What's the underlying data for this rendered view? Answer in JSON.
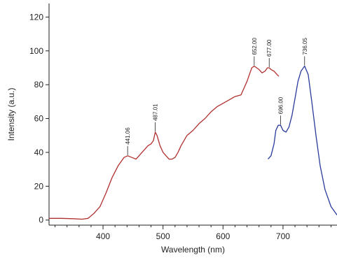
{
  "chart_data": {
    "type": "line",
    "title": "",
    "xlabel": "Wavelength (nm)",
    "ylabel": "Intensity (a.u.)",
    "xlim": [
      310,
      790
    ],
    "ylim": [
      -3,
      128
    ],
    "xticks": [
      400,
      500,
      600,
      700
    ],
    "yticks": [
      0,
      20,
      40,
      60,
      80,
      100,
      120
    ],
    "grid": false,
    "series": [
      {
        "color": "#b03030",
        "x": [
          310,
          330,
          350,
          365,
          375,
          385,
          395,
          405,
          415,
          425,
          435,
          441,
          448,
          455,
          465,
          475,
          480,
          484,
          487,
          490,
          495,
          500,
          505,
          510,
          515,
          520,
          525,
          530,
          540,
          550,
          560,
          570,
          580,
          590,
          600,
          610,
          620,
          630,
          635,
          640,
          645,
          648,
          652,
          656,
          660,
          665,
          670,
          674,
          677,
          680,
          685,
          690,
          693
        ],
        "y": [
          1,
          1,
          0.8,
          0.5,
          1,
          4,
          8,
          16,
          25,
          32,
          37,
          38,
          37,
          36,
          40,
          44,
          45,
          47,
          52,
          50,
          44,
          40,
          38,
          36,
          36,
          37,
          40,
          44,
          50,
          53,
          57,
          60,
          64,
          67,
          69,
          71,
          73,
          74,
          78,
          82,
          87,
          90,
          91,
          90,
          89,
          87,
          88,
          90,
          90,
          89,
          88,
          86,
          85
        ]
      },
      {
        "color": "#2a3a9a",
        "x": [
          675,
          680,
          685,
          688,
          692,
          696,
          700,
          705,
          710,
          715,
          720,
          725,
          730,
          736,
          742,
          748,
          755,
          762,
          770,
          780,
          790
        ],
        "y": [
          36,
          38,
          45,
          53,
          56,
          56,
          53,
          52,
          55,
          62,
          72,
          82,
          88,
          91,
          86,
          70,
          50,
          32,
          18,
          8,
          3
        ]
      }
    ],
    "annotations": [
      {
        "x": 441,
        "y": 38,
        "text": "441.06"
      },
      {
        "x": 487,
        "y": 52,
        "text": "487.01"
      },
      {
        "x": 652,
        "y": 91,
        "text": "652.00"
      },
      {
        "x": 677,
        "y": 90,
        "text": "677.00"
      },
      {
        "x": 696,
        "y": 56,
        "text": "696.00"
      },
      {
        "x": 736,
        "y": 91,
        "text": "736.05"
      }
    ]
  }
}
